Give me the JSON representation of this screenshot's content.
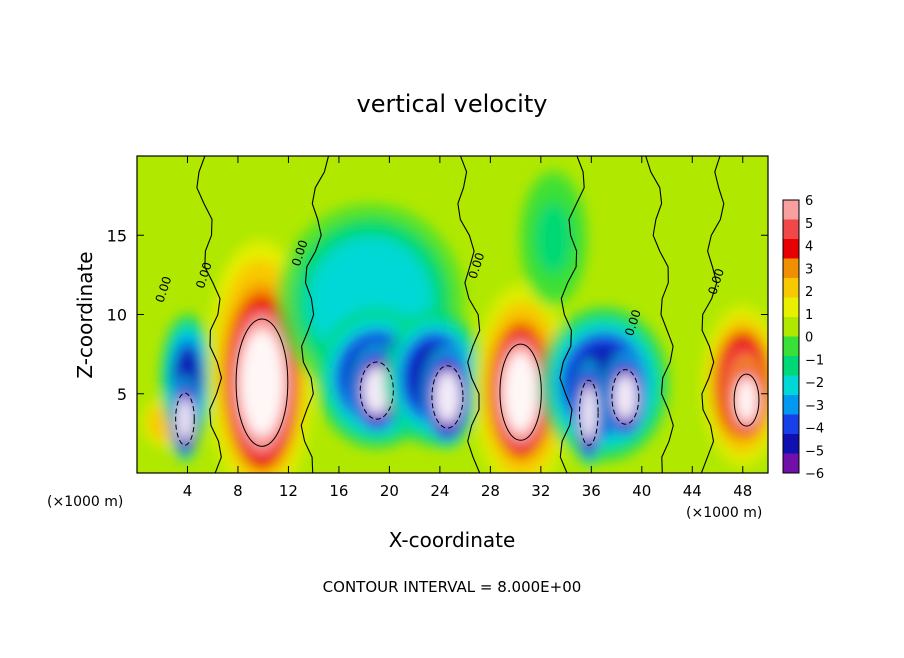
{
  "chart_data": {
    "type": "heatmap",
    "title": "vertical velocity",
    "xlabel": "X-coordinate",
    "ylabel": "Z-coordinate",
    "x_unit": "(×1000 m)",
    "xlim": [
      0,
      50
    ],
    "ylim": [
      0,
      20
    ],
    "x_ticks": [
      4,
      8,
      12,
      16,
      20,
      24,
      28,
      32,
      36,
      40,
      44,
      48
    ],
    "y_ticks": [
      5,
      10,
      15
    ],
    "footer": "CONTOUR INTERVAL = 8.000E+00",
    "contour_label": "0.00",
    "colorbar": {
      "min": -6,
      "max": 6,
      "ticks": [
        6,
        5,
        4,
        3,
        2,
        1,
        0,
        -1,
        -2,
        -3,
        -4,
        -5,
        -6
      ],
      "colors": [
        "#f8a0a0",
        "#f04848",
        "#e80000",
        "#f09000",
        "#f8c800",
        "#e8f000",
        "#b0e800",
        "#38e038",
        "#00d878",
        "#00d8d8",
        "#0098f0",
        "#1840e8",
        "#1010b0",
        "#7010a8"
      ]
    },
    "cells": [
      {
        "x": 2.4,
        "z": 3.2,
        "rx": 1.7,
        "rz": 1.4,
        "v": 2.5
      },
      {
        "x": 4.0,
        "z": 6.0,
        "rx": 1.6,
        "rz": 3.0,
        "v": -4.5
      },
      {
        "x": 3.8,
        "z": 3.4,
        "rx": 0.9,
        "rz": 2.0,
        "v": -8.0
      },
      {
        "x": 9.6,
        "z": 11.5,
        "rx": 2.6,
        "rz": 2.3,
        "v": 3.0
      },
      {
        "x": 9.8,
        "z": 6.4,
        "rx": 3.2,
        "rz": 6.2,
        "v": 5.0
      },
      {
        "x": 9.9,
        "z": 5.7,
        "rx": 2.5,
        "rz": 4.9,
        "v": 8.0
      },
      {
        "x": 18.5,
        "z": 10.8,
        "rx": 5.5,
        "rz": 4.6,
        "v": -2.5
      },
      {
        "x": 19.0,
        "z": 6.0,
        "rx": 3.6,
        "rz": 3.3,
        "v": -5.0
      },
      {
        "x": 19.0,
        "z": 5.2,
        "rx": 1.6,
        "rz": 2.2,
        "v": -8.0
      },
      {
        "x": 23.6,
        "z": 6.0,
        "rx": 3.0,
        "rz": 3.2,
        "v": -5.0
      },
      {
        "x": 24.6,
        "z": 4.8,
        "rx": 1.5,
        "rz": 2.4,
        "v": -8.0
      },
      {
        "x": 30.5,
        "z": 5.3,
        "rx": 2.9,
        "rz": 4.9,
        "v": 5.0
      },
      {
        "x": 30.4,
        "z": 5.1,
        "rx": 2.0,
        "rz": 3.7,
        "v": 8.0
      },
      {
        "x": 37.0,
        "z": 5.6,
        "rx": 3.8,
        "rz": 3.6,
        "v": -5.0
      },
      {
        "x": 35.8,
        "z": 3.8,
        "rx": 0.9,
        "rz": 2.5,
        "v": -8.0
      },
      {
        "x": 38.7,
        "z": 4.8,
        "rx": 1.3,
        "rz": 2.1,
        "v": -8.0
      },
      {
        "x": 33.0,
        "z": 14.8,
        "rx": 2.0,
        "rz": 3.2,
        "v": -1.0
      },
      {
        "x": 48.0,
        "z": 5.5,
        "rx": 2.4,
        "rz": 3.8,
        "v": 5.0
      },
      {
        "x": 48.3,
        "z": 4.6,
        "rx": 1.2,
        "rz": 2.0,
        "v": 8.0
      }
    ]
  }
}
